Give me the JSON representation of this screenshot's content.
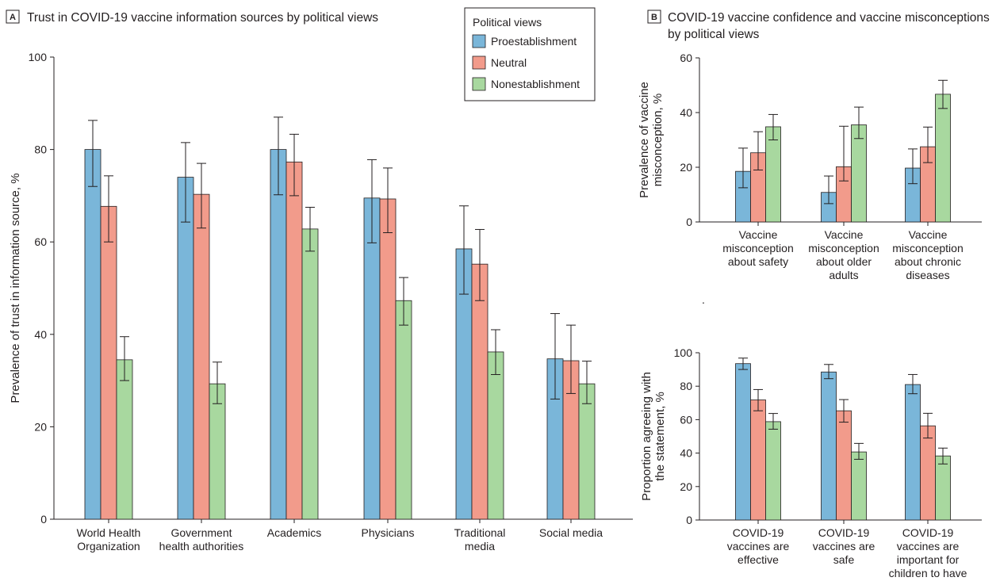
{
  "colors": {
    "proestablishment": "#7ab6d9",
    "neutral": "#f29b8b",
    "nonestablishment": "#a8d89f",
    "axis": "#231f20"
  },
  "legend": {
    "title": "Political views",
    "items": [
      "Proestablishment",
      "Neutral",
      "Nonestablishment"
    ]
  },
  "chart_data": [
    {
      "panel": "A",
      "type": "bar",
      "title": "Trust in COVID-19 vaccine information sources by political views",
      "ylabel": "Prevalence of trust in information source, %",
      "ylim": [
        0,
        100
      ],
      "yticks": [
        "0",
        "20",
        "40",
        "60",
        "80",
        "100"
      ],
      "categories": [
        [
          "World Health",
          "Organization"
        ],
        [
          "Government",
          "health authorities"
        ],
        [
          "Academics"
        ],
        [
          "Physicians"
        ],
        [
          "Traditional",
          "media"
        ],
        [
          "Social media"
        ]
      ],
      "series": [
        {
          "name": "Proestablishment",
          "values": [
            80,
            74,
            80,
            69.5,
            58.5,
            34.7
          ],
          "err_low": [
            72,
            64.3,
            70.2,
            59.8,
            48.7,
            26
          ],
          "err_high": [
            86.3,
            81.5,
            87,
            77.8,
            67.8,
            44.5
          ]
        },
        {
          "name": "Neutral",
          "values": [
            67.7,
            70.3,
            77.3,
            69.3,
            55.2,
            34.3
          ],
          "err_low": [
            60,
            63,
            70,
            62,
            47.3,
            27.2
          ],
          "err_high": [
            74.3,
            77,
            83.3,
            76,
            62.7,
            42
          ]
        },
        {
          "name": "Nonestablishment",
          "values": [
            34.5,
            29.3,
            62.8,
            47.3,
            36.2,
            29.3
          ],
          "err_low": [
            30,
            25,
            58,
            42,
            31.3,
            25
          ],
          "err_high": [
            39.5,
            34,
            67.5,
            52.3,
            41,
            34.2
          ]
        }
      ]
    },
    {
      "panel": "B",
      "type": "bar",
      "title": "COVID-19 vaccine confidence and vaccine misconceptions",
      "title_line2": "by political views",
      "ylabel": "Prevalence of vaccine misconception, %",
      "ylim": [
        0,
        60
      ],
      "yticks": [
        "0",
        "20",
        "40",
        "60"
      ],
      "categories": [
        [
          "Vaccine",
          "misconception",
          "about safety"
        ],
        [
          "Vaccine",
          "misconception",
          "about older",
          "adults"
        ],
        [
          "Vaccine",
          "misconception",
          "about chronic",
          "diseases"
        ]
      ],
      "series": [
        {
          "name": "Proestablishment",
          "values": [
            18.5,
            10.8,
            19.7
          ],
          "err_low": [
            12.5,
            6.7,
            14
          ],
          "err_high": [
            27,
            16.8,
            26.7
          ]
        },
        {
          "name": "Neutral",
          "values": [
            25.3,
            20.2,
            27.5
          ],
          "err_low": [
            19,
            15,
            21.7
          ],
          "err_high": [
            33,
            35,
            34.7
          ]
        },
        {
          "name": "Nonestablishment",
          "values": [
            34.8,
            35.5,
            46.7
          ],
          "err_low": [
            30,
            30.5,
            41.5
          ],
          "err_high": [
            39.3,
            42,
            51.8
          ]
        }
      ]
    },
    {
      "panel": "B",
      "type": "bar",
      "ylabel": "Proportion agreeing with the statement, %",
      "ylim": [
        0,
        100
      ],
      "yticks": [
        "0",
        "20",
        "40",
        "60",
        "80",
        "100"
      ],
      "categories": [
        [
          "COVID-19",
          "vaccines are",
          "effective"
        ],
        [
          "COVID-19",
          "vaccines are",
          "safe"
        ],
        [
          "COVID-19",
          "vaccines are",
          "important for",
          "children to have"
        ]
      ],
      "series": [
        {
          "name": "Proestablishment",
          "values": [
            93.5,
            88.5,
            81
          ],
          "err_low": [
            90,
            84.5,
            75.5
          ],
          "err_high": [
            96.8,
            93,
            87
          ]
        },
        {
          "name": "Neutral",
          "values": [
            71.8,
            65.3,
            56.3
          ],
          "err_low": [
            65.3,
            58.5,
            49
          ],
          "err_high": [
            78,
            72,
            63.8
          ]
        },
        {
          "name": "Nonestablishment",
          "values": [
            58.8,
            40.7,
            38.3
          ],
          "err_low": [
            54.3,
            36.3,
            33.5
          ],
          "err_high": [
            63.7,
            45.8,
            43
          ]
        }
      ]
    }
  ]
}
